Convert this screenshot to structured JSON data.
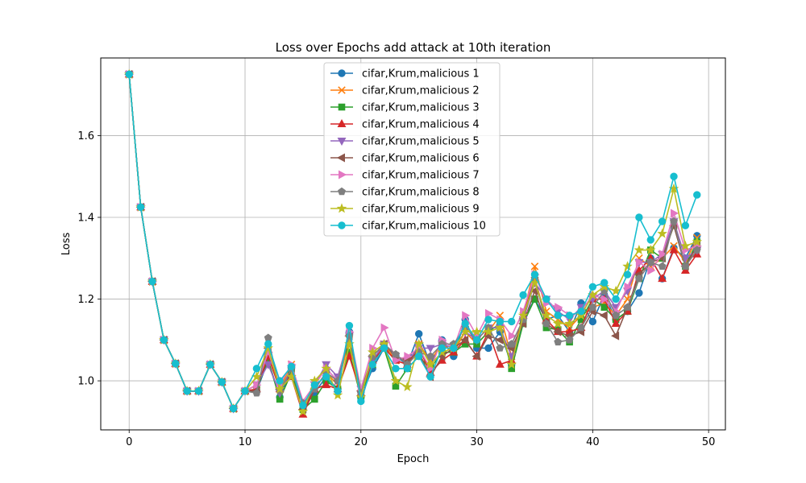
{
  "chart_data": {
    "type": "line",
    "title": "Loss over Epochs add attack at 10th iteration",
    "xlabel": "Epoch",
    "ylabel": "Loss",
    "xlim": [
      -2.45,
      51.45
    ],
    "ylim": [
      0.88,
      1.79
    ],
    "xticks": [
      0,
      10,
      20,
      30,
      40,
      50
    ],
    "yticks": [
      1.0,
      1.2,
      1.4,
      1.6
    ],
    "grid": true,
    "legend_position": "top-center",
    "x": [
      0,
      1,
      2,
      3,
      4,
      5,
      6,
      7,
      8,
      9,
      10,
      11,
      12,
      13,
      14,
      15,
      16,
      17,
      18,
      19,
      20,
      21,
      22,
      23,
      24,
      25,
      26,
      27,
      28,
      29,
      30,
      31,
      32,
      33,
      34,
      35,
      36,
      37,
      38,
      39,
      40,
      41,
      42,
      43,
      44,
      45,
      46,
      47,
      48,
      49
    ],
    "series": [
      {
        "name": "cifar,Krum,malicious 1",
        "color": "#1f77b4",
        "marker": "circle",
        "values": [
          1.75,
          1.425,
          1.243,
          1.1,
          1.042,
          0.975,
          0.975,
          1.04,
          0.997,
          0.932,
          0.975,
          0.975,
          1.05,
          0.96,
          1.03,
          0.93,
          0.97,
          1.01,
          0.98,
          1.12,
          0.96,
          1.03,
          1.08,
          1.06,
          1.04,
          1.115,
          1.04,
          1.1,
          1.06,
          1.15,
          1.08,
          1.08,
          1.12,
          1.04,
          1.15,
          1.2,
          1.15,
          1.16,
          1.12,
          1.19,
          1.145,
          1.21,
          1.15,
          1.17,
          1.215,
          1.3,
          1.25,
          1.325,
          1.3,
          1.355
        ]
      },
      {
        "name": "cifar,Krum,malicious 2",
        "color": "#ff7f0e",
        "marker": "x",
        "values": [
          1.75,
          1.425,
          1.243,
          1.1,
          1.042,
          0.975,
          0.975,
          1.04,
          0.997,
          0.932,
          0.975,
          0.99,
          1.06,
          0.98,
          1.04,
          0.94,
          0.98,
          1.02,
          0.99,
          1.1,
          0.97,
          1.04,
          1.09,
          1.05,
          1.04,
          1.09,
          1.05,
          1.09,
          1.07,
          1.12,
          1.09,
          1.12,
          1.16,
          1.06,
          1.16,
          1.28,
          1.17,
          1.15,
          1.13,
          1.16,
          1.18,
          1.19,
          1.16,
          1.2,
          1.3,
          1.28,
          1.3,
          1.33,
          1.29,
          1.35
        ]
      },
      {
        "name": "cifar,Krum,malicious 3",
        "color": "#2ca02c",
        "marker": "square",
        "values": [
          1.75,
          1.425,
          1.243,
          1.1,
          1.042,
          0.975,
          0.975,
          1.04,
          0.997,
          0.932,
          0.975,
          0.98,
          1.05,
          0.955,
          1.02,
          0.93,
          0.955,
          1.0,
          0.98,
          1.07,
          0.96,
          1.04,
          1.08,
          0.987,
          1.03,
          1.06,
          1.03,
          1.07,
          1.07,
          1.09,
          1.09,
          1.12,
          1.14,
          1.03,
          1.14,
          1.2,
          1.13,
          1.125,
          1.095,
          1.15,
          1.2,
          1.18,
          1.15,
          1.17,
          1.25,
          1.32,
          1.3,
          1.38,
          1.28,
          1.34
        ]
      },
      {
        "name": "cifar,Krum,malicious 4",
        "color": "#d62728",
        "marker": "triangle-up",
        "values": [
          1.75,
          1.425,
          1.243,
          1.1,
          1.042,
          0.975,
          0.975,
          1.04,
          0.997,
          0.932,
          0.975,
          0.98,
          1.06,
          0.98,
          1.01,
          0.918,
          0.98,
          0.99,
          0.98,
          1.06,
          0.97,
          1.05,
          1.08,
          1.05,
          1.04,
          1.08,
          1.02,
          1.05,
          1.07,
          1.1,
          1.06,
          1.12,
          1.04,
          1.05,
          1.16,
          1.25,
          1.15,
          1.12,
          1.12,
          1.13,
          1.2,
          1.2,
          1.14,
          1.17,
          1.27,
          1.3,
          1.25,
          1.32,
          1.27,
          1.31
        ]
      },
      {
        "name": "cifar,Krum,malicious 5",
        "color": "#9467bd",
        "marker": "triangle-down",
        "values": [
          1.75,
          1.425,
          1.243,
          1.1,
          1.042,
          0.975,
          0.975,
          1.04,
          0.997,
          0.932,
          0.975,
          0.99,
          1.04,
          0.97,
          1.03,
          0.94,
          0.99,
          1.04,
          1.01,
          1.11,
          0.98,
          1.05,
          1.09,
          1.06,
          1.05,
          1.08,
          1.08,
          1.09,
          1.08,
          1.12,
          1.1,
          1.13,
          1.13,
          1.06,
          1.15,
          1.24,
          1.2,
          1.17,
          1.15,
          1.18,
          1.2,
          1.22,
          1.18,
          1.22,
          1.29,
          1.29,
          1.31,
          1.39,
          1.3,
          1.32
        ]
      },
      {
        "name": "cifar,Krum,malicious 6",
        "color": "#8c564b",
        "marker": "triangle-left",
        "values": [
          1.75,
          1.425,
          1.243,
          1.1,
          1.042,
          0.975,
          0.975,
          1.04,
          0.997,
          0.932,
          0.975,
          0.975,
          1.08,
          0.98,
          1.01,
          0.93,
          0.98,
          1.02,
          1.0,
          1.11,
          0.975,
          1.06,
          1.09,
          1.06,
          1.05,
          1.07,
          1.01,
          1.06,
          1.08,
          1.1,
          1.06,
          1.11,
          1.1,
          1.08,
          1.14,
          1.22,
          1.14,
          1.12,
          1.11,
          1.12,
          1.17,
          1.16,
          1.11,
          1.18,
          1.26,
          1.29,
          1.3,
          1.38,
          1.28,
          1.33
        ]
      },
      {
        "name": "cifar,Krum,malicious 7",
        "color": "#e377c2",
        "marker": "triangle-right",
        "values": [
          1.75,
          1.425,
          1.243,
          1.1,
          1.042,
          0.975,
          0.975,
          1.04,
          0.997,
          0.932,
          0.975,
          0.99,
          1.07,
          0.99,
          1.04,
          0.95,
          0.99,
          1.03,
          1.0,
          1.12,
          0.98,
          1.08,
          1.13,
          1.05,
          1.06,
          1.08,
          1.03,
          1.1,
          1.08,
          1.16,
          1.11,
          1.165,
          1.15,
          1.11,
          1.17,
          1.26,
          1.19,
          1.18,
          1.16,
          1.17,
          1.21,
          1.2,
          1.17,
          1.23,
          1.29,
          1.27,
          1.31,
          1.41,
          1.32,
          1.33
        ]
      },
      {
        "name": "cifar,Krum,malicious 8",
        "color": "#7f7f7f",
        "marker": "pentagon",
        "values": [
          1.75,
          1.425,
          1.243,
          1.1,
          1.042,
          0.975,
          0.975,
          1.04,
          0.997,
          0.932,
          0.975,
          0.97,
          1.105,
          0.975,
          1.03,
          0.945,
          0.98,
          1.02,
          1.0,
          1.11,
          0.97,
          1.06,
          1.09,
          1.065,
          1.04,
          1.07,
          1.06,
          1.09,
          1.09,
          1.13,
          1.1,
          1.13,
          1.08,
          1.09,
          1.15,
          1.25,
          1.14,
          1.095,
          1.1,
          1.13,
          1.18,
          1.22,
          1.16,
          1.18,
          1.25,
          1.29,
          1.28,
          1.39,
          1.28,
          1.32
        ]
      },
      {
        "name": "cifar,Krum,malicious 9",
        "color": "#bcbd22",
        "marker": "star",
        "values": [
          1.75,
          1.425,
          1.243,
          1.1,
          1.042,
          0.975,
          0.975,
          1.04,
          0.997,
          0.932,
          0.975,
          1.01,
          1.08,
          0.98,
          1.01,
          0.925,
          1.0,
          1.03,
          0.965,
          1.09,
          0.96,
          1.07,
          1.09,
          1.0,
          0.985,
          1.09,
          1.04,
          1.07,
          1.08,
          1.12,
          1.12,
          1.12,
          1.13,
          1.04,
          1.16,
          1.24,
          1.16,
          1.14,
          1.14,
          1.16,
          1.21,
          1.23,
          1.22,
          1.28,
          1.32,
          1.32,
          1.36,
          1.47,
          1.33,
          1.34
        ]
      },
      {
        "name": "cifar,Krum,malicious 10",
        "color": "#17becf",
        "marker": "circle",
        "values": [
          1.75,
          1.425,
          1.243,
          1.1,
          1.042,
          0.975,
          0.975,
          1.04,
          0.997,
          0.932,
          0.975,
          1.03,
          1.09,
          1.0,
          1.035,
          0.94,
          0.99,
          1.01,
          0.975,
          1.135,
          0.95,
          1.04,
          1.08,
          1.03,
          1.03,
          1.06,
          1.01,
          1.08,
          1.08,
          1.14,
          1.1,
          1.15,
          1.145,
          1.145,
          1.21,
          1.26,
          1.2,
          1.16,
          1.16,
          1.17,
          1.23,
          1.24,
          1.2,
          1.26,
          1.4,
          1.345,
          1.39,
          1.5,
          1.38,
          1.455
        ]
      }
    ]
  }
}
